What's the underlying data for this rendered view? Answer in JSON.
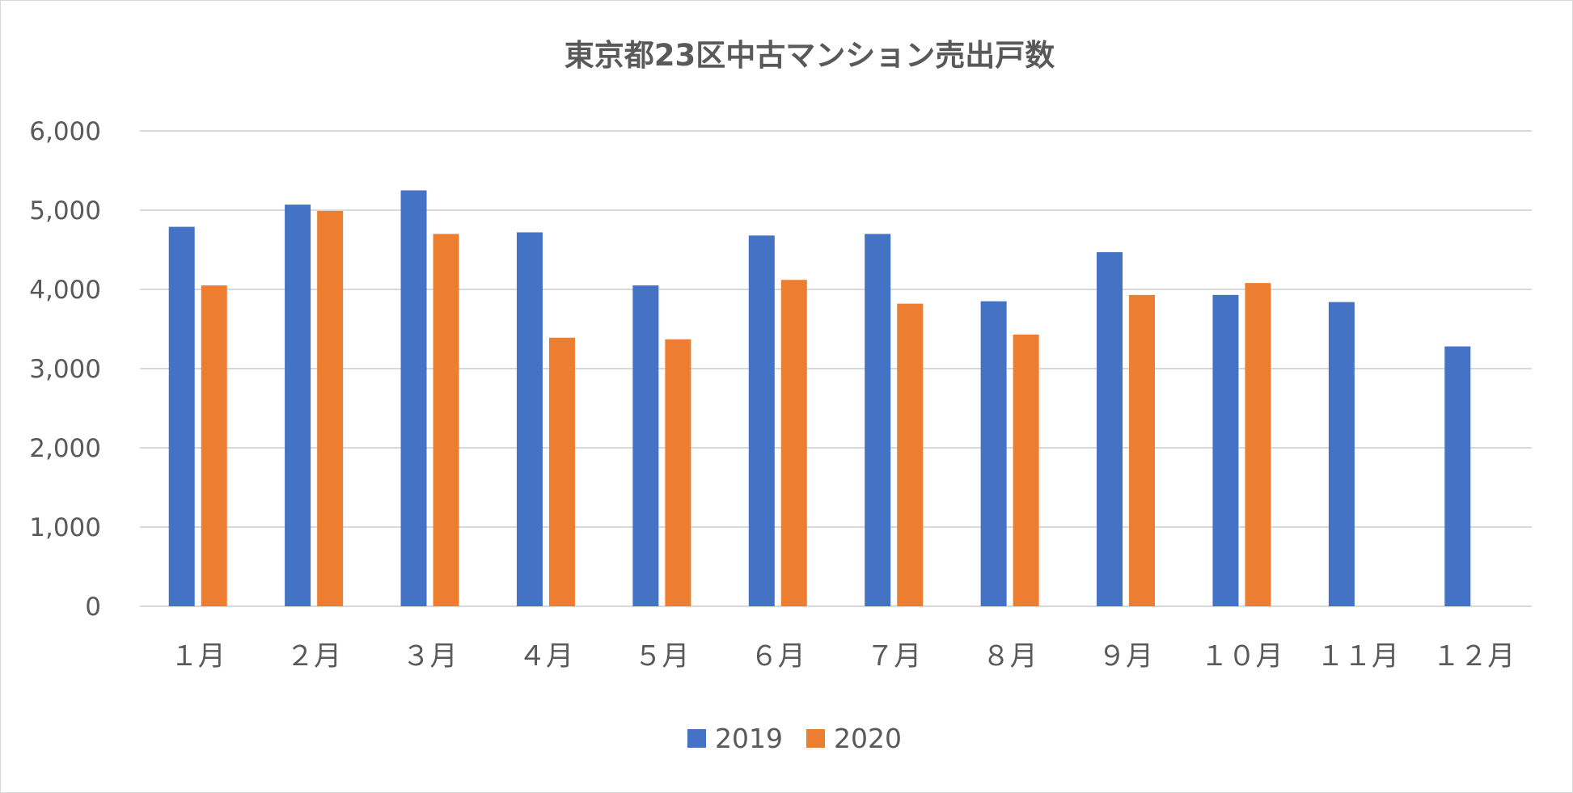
{
  "chart_data": {
    "type": "bar",
    "title": "東京都23区中古マンション売出戸数",
    "xlabel": "",
    "ylabel": "",
    "categories": [
      "１月",
      "２月",
      "３月",
      "４月",
      "５月",
      "６月",
      "７月",
      "８月",
      "９月",
      "１０月",
      "１１月",
      "１２月"
    ],
    "series": [
      {
        "name": "2019",
        "color": "#4472C4",
        "values": [
          4790,
          5070,
          5250,
          4720,
          4050,
          4680,
          4700,
          3850,
          4470,
          3930,
          3840,
          3280
        ]
      },
      {
        "name": "2020",
        "color": "#ED7D31",
        "values": [
          4050,
          4990,
          4700,
          3390,
          3370,
          4120,
          3820,
          3430,
          3930,
          4080,
          null,
          null
        ]
      }
    ],
    "ylim": [
      0,
      6000
    ],
    "yticks": [
      0,
      1000,
      2000,
      3000,
      4000,
      5000,
      6000
    ],
    "ytick_labels": [
      "0",
      "1,000",
      "2,000",
      "3,000",
      "4,000",
      "5,000",
      "6,000"
    ],
    "grid": true,
    "legend_position": "bottom"
  }
}
